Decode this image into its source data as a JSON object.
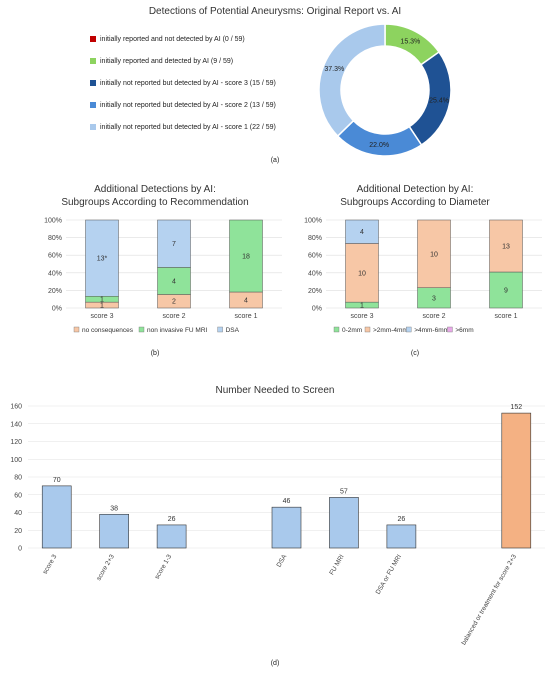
{
  "panel_labels": [
    "(a)",
    "(b)",
    "(c)",
    "(d)"
  ],
  "chart_data": [
    {
      "type": "pie",
      "subtype": "donut",
      "title": "Detections of Potential Aneurysms: Original Report vs. AI",
      "legend_position": "left",
      "slices": [
        {
          "label": "initially reported and not detected by AI (0 / 59)",
          "value": 0,
          "pct_label": "",
          "color": "#c00000"
        },
        {
          "label": "initially reported and detected by AI (9 / 59)",
          "value": 9,
          "pct_label": "15.3%",
          "color": "#8dd35f"
        },
        {
          "label": "initially not reported but detected by AI - score 3 (15 / 59)",
          "value": 15,
          "pct_label": "25.4%",
          "color": "#1f5294"
        },
        {
          "label": "initially not reported but detected by AI - score 2 (13 / 59)",
          "value": 13,
          "pct_label": "22.0%",
          "color": "#4a8ad6"
        },
        {
          "label": "initially not reported but detected by AI - score 1 (22 / 59)",
          "value": 22,
          "pct_label": "37.3%",
          "color": "#a9c9ec"
        }
      ]
    },
    {
      "type": "bar",
      "stacked": true,
      "normalized": true,
      "title": "Additional Detections by  AI:",
      "subtitle": "Subgroups According to Recommendation",
      "categories": [
        "score 3",
        "score 2",
        "score 1"
      ],
      "yticks": [
        "0%",
        "20%",
        "40%",
        "60%",
        "80%",
        "100%"
      ],
      "ylim": [
        0,
        100
      ],
      "series": [
        {
          "name": "no consequences",
          "color": "#f7c7a6",
          "values": [
            1,
            2,
            4
          ],
          "labels": [
            "1",
            "2",
            "4"
          ]
        },
        {
          "name": "non invasive FU MRI",
          "color": "#8fe39a",
          "values": [
            1,
            4,
            18
          ],
          "labels": [
            "1",
            "4",
            "18"
          ]
        },
        {
          "name": "DSA",
          "color": "#b5d2f0",
          "values": [
            13,
            7,
            0
          ],
          "labels": [
            "13*",
            "7",
            ""
          ]
        }
      ]
    },
    {
      "type": "bar",
      "stacked": true,
      "normalized": true,
      "title": "Additional Detection by AI:",
      "subtitle": "Subgroups According to Diameter",
      "categories": [
        "score 3",
        "score 2",
        "score 1"
      ],
      "yticks": [
        "0%",
        "20%",
        "40%",
        "60%",
        "80%",
        "100%"
      ],
      "ylim": [
        0,
        100
      ],
      "series": [
        {
          "name": "0-2mm",
          "color": "#8fe39a",
          "values": [
            1,
            3,
            9
          ],
          "labels": [
            "1",
            "3",
            "9"
          ]
        },
        {
          "name": ">2mm-4mm",
          "color": "#f7c7a6",
          "values": [
            10,
            10,
            13
          ],
          "labels": [
            "10",
            "10",
            "13"
          ]
        },
        {
          "name": ">4mm-6mm",
          "color": "#b5d2f0",
          "values": [
            4,
            0,
            0
          ],
          "labels": [
            "4",
            "",
            ""
          ]
        },
        {
          "name": ">6mm",
          "color": "#e8a8e8",
          "values": [
            0,
            0,
            0
          ],
          "labels": [
            "",
            "",
            ""
          ]
        }
      ]
    },
    {
      "type": "bar",
      "title": "Number Needed to Screen",
      "categories": [
        "score 3",
        "score 2+3",
        "score 1-3",
        "DSA",
        "FU MRI",
        "DSA or FU MRI",
        "balanced or treatment for score 2+3"
      ],
      "values": [
        70,
        38,
        26,
        46,
        57,
        26,
        152
      ],
      "colors": [
        "#a9c9ec",
        "#a9c9ec",
        "#a9c9ec",
        "#a9c9ec",
        "#a9c9ec",
        "#a9c9ec",
        "#f4b183"
      ],
      "yticks": [
        "0",
        "20",
        "40",
        "60",
        "80",
        "100",
        "120",
        "140",
        "160"
      ],
      "ylim": [
        0,
        160
      ]
    }
  ]
}
